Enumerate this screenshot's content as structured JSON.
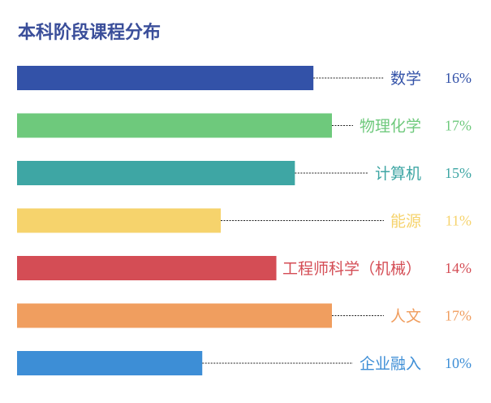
{
  "chart_data": {
    "type": "bar",
    "orientation": "horizontal",
    "title": "本科阶段课程分布",
    "categories": [
      "数学",
      "物理化学",
      "计算机",
      "能源",
      "工程师科学（机械）",
      "人文",
      "企业融入"
    ],
    "values": [
      16,
      17,
      15,
      11,
      14,
      17,
      10
    ],
    "value_labels": [
      "16%",
      "17%",
      "15%",
      "11%",
      "14%",
      "17%",
      "10%"
    ],
    "unit": "%",
    "colors": [
      "#3352a8",
      "#6ec97c",
      "#3ea6a4",
      "#f6d36c",
      "#d44d55",
      "#f09e5f",
      "#3d8ed6"
    ],
    "xlim": [
      0,
      17
    ],
    "grid": false,
    "legend": "none",
    "leader_lines": "dotted"
  }
}
